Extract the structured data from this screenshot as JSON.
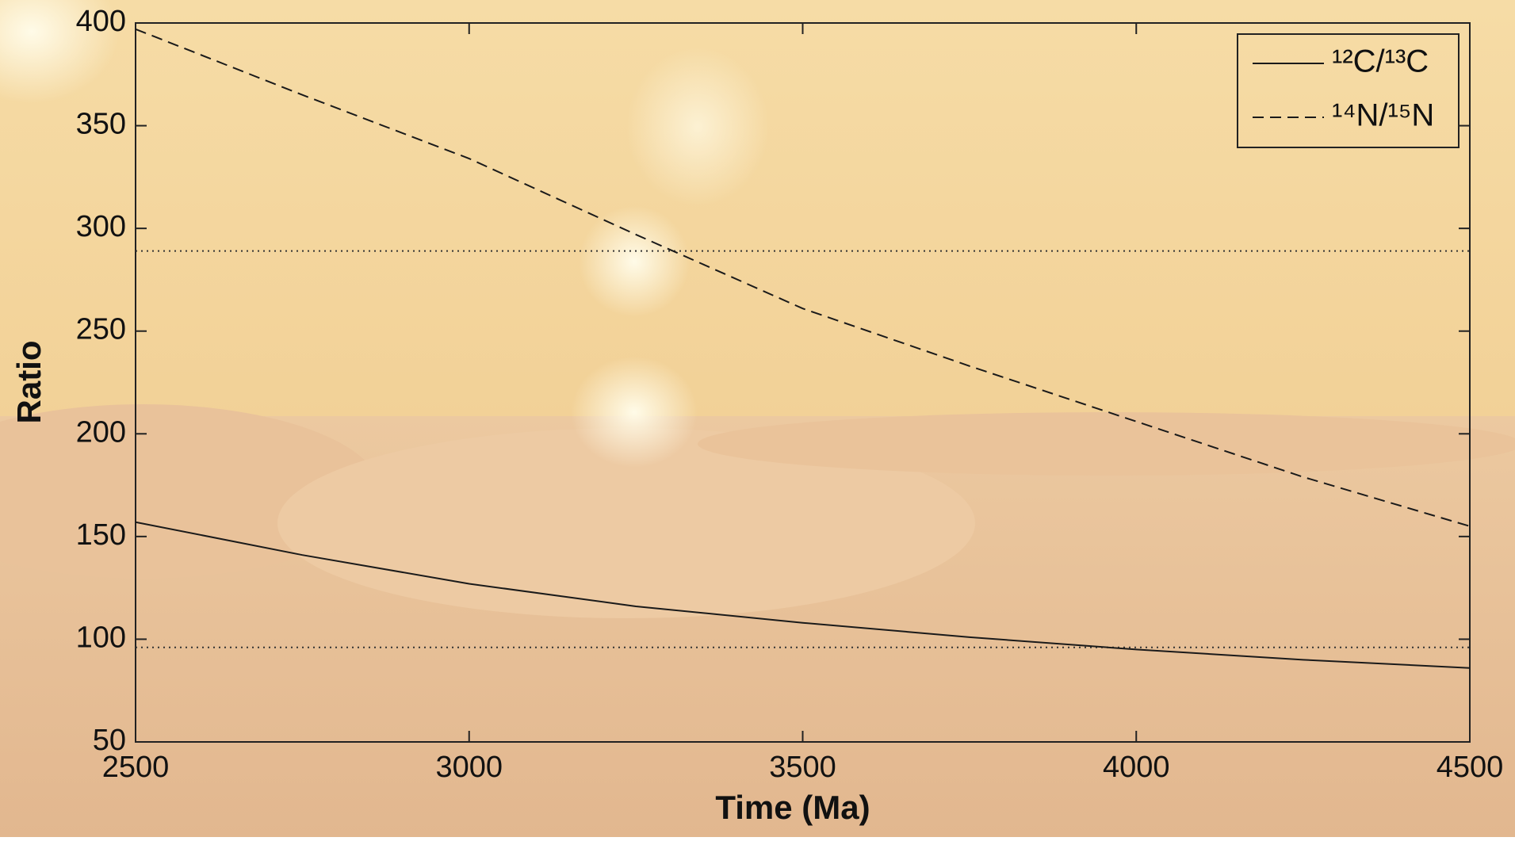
{
  "chart_data": {
    "type": "line",
    "xlabel": "Time (Ma)",
    "ylabel": "Ratio",
    "x": [
      2500,
      2750,
      3000,
      3250,
      3500,
      3750,
      4000,
      4250,
      4500
    ],
    "series": [
      {
        "name": "¹²C/¹³C",
        "color": "#1a1a1a",
        "dash": "solid",
        "values": [
          157,
          141,
          127,
          116,
          108,
          101,
          95,
          90,
          86
        ]
      },
      {
        "name": "¹⁴N/¹⁵N",
        "color": "#1a1a1a",
        "dash": "dashed",
        "values": [
          397,
          365,
          334,
          297,
          261,
          233,
          206,
          179,
          155
        ]
      }
    ],
    "reference_lines": [
      289,
      96
    ],
    "xlim": [
      2500,
      4500
    ],
    "xticks": [
      2500,
      3000,
      3500,
      4000,
      4500
    ],
    "ylim": [
      50,
      400
    ],
    "yticks": [
      50,
      100,
      150,
      200,
      250,
      300,
      350,
      400
    ],
    "legend": "upper right",
    "grid": false
  }
}
